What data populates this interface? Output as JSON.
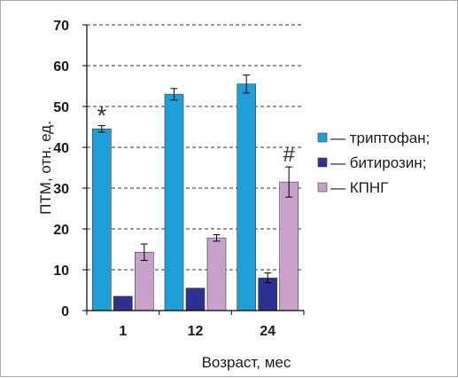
{
  "chart_data": {
    "type": "bar",
    "categories": [
      "1",
      "12",
      "24"
    ],
    "series": [
      {
        "name": "— триптофан;",
        "color": "#1f9fd8",
        "values": [
          44.5,
          53,
          55.5
        ],
        "errors": [
          0.8,
          1.4,
          2.2
        ]
      },
      {
        "name": "— битирозин;",
        "color": "#2e3191",
        "values": [
          3.5,
          5.5,
          8
        ],
        "errors": [
          0,
          0,
          1.2
        ]
      },
      {
        "name": "— КПНГ",
        "color": "#c7a0cb",
        "values": [
          14.3,
          17.8,
          31.5
        ],
        "errors": [
          2.0,
          0.8,
          3.7
        ]
      }
    ],
    "annotations": [
      {
        "text": "*",
        "category": "1",
        "series": 0
      },
      {
        "text": "#",
        "category": "24",
        "series": 2
      }
    ],
    "xlabel": "Возраст, мес",
    "ylabel": "ПТМ, отн. ед.",
    "ylim": [
      0,
      70
    ],
    "yticks": [
      "0",
      "10",
      "20",
      "30",
      "40",
      "50",
      "60",
      "70"
    ],
    "grid": "horizontal-dashed",
    "legend": "right"
  }
}
